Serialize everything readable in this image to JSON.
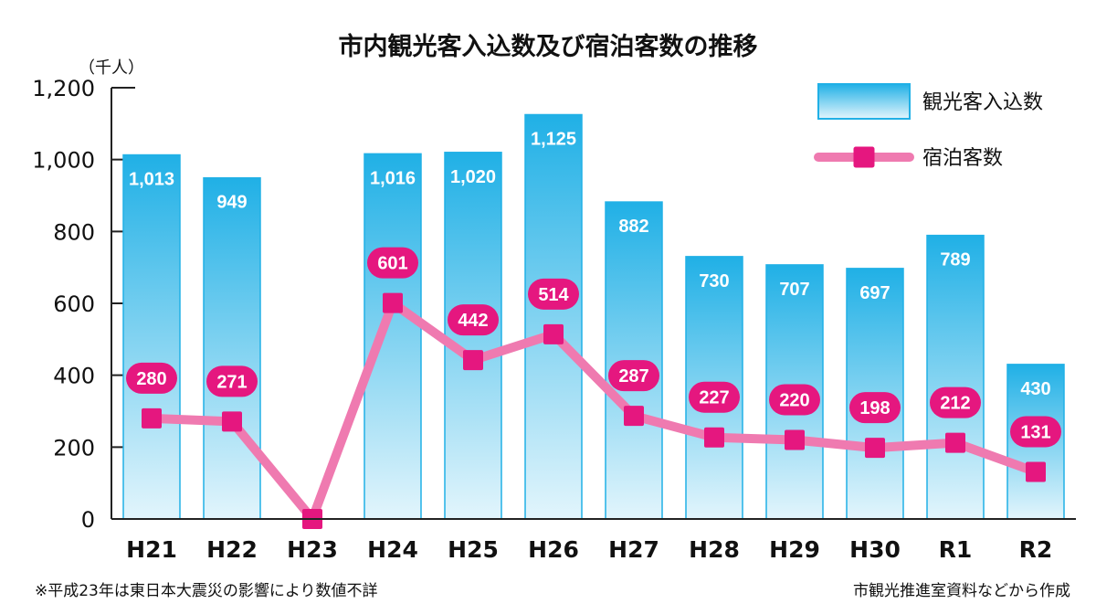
{
  "chart_data": {
    "type": "bar+line",
    "title": "市内観光客入込数及び宿泊客数の推移",
    "unit_label": "（千人）",
    "categories": [
      "H21",
      "H22",
      "H23",
      "H24",
      "H25",
      "H26",
      "H27",
      "H28",
      "H29",
      "H30",
      "R1",
      "R2"
    ],
    "series": [
      {
        "name": "観光客入込数",
        "type": "bar",
        "values": [
          1013,
          949,
          null,
          1016,
          1020,
          1125,
          882,
          730,
          707,
          697,
          789,
          430
        ],
        "labels": [
          "1,013",
          "949",
          "",
          "1,016",
          "1,020",
          "1,125",
          "882",
          "730",
          "707",
          "697",
          "789",
          "430"
        ]
      },
      {
        "name": "宿泊客数",
        "type": "line",
        "values": [
          280,
          271,
          0,
          601,
          442,
          514,
          287,
          227,
          220,
          198,
          212,
          131
        ],
        "labels": [
          "280",
          "271",
          "",
          "601",
          "442",
          "514",
          "287",
          "227",
          "220",
          "198",
          "212",
          "131"
        ]
      }
    ],
    "ylim": [
      0,
      1200
    ],
    "yticks": [
      0,
      200,
      400,
      600,
      800,
      1000,
      1200
    ],
    "ytick_labels": [
      "0",
      "200",
      "400",
      "600",
      "800",
      "1,000",
      "1,200"
    ],
    "legend_position": "top-right",
    "footnote_left": "※平成23年は東日本大震災の影響により数値不詳",
    "footnote_right": "市観光推進室資料などから作成"
  },
  "colors": {
    "bar_top": "#20b0e6",
    "bar_bottom": "#e2f5fc",
    "line": "#ef7ab0",
    "marker": "#e5177f",
    "axis": "#222222"
  }
}
